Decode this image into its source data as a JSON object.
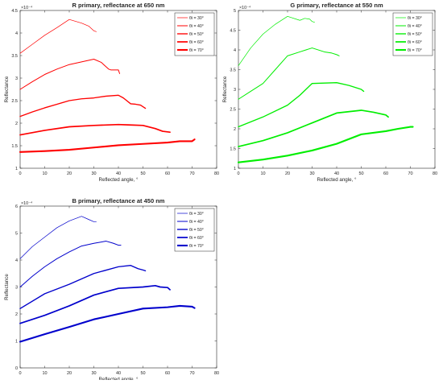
{
  "chart_data": [
    {
      "type": "line",
      "title": "R primary, reflectance at 650 nm",
      "xlabel": "Reflected angle, °",
      "ylabel": "Reflectance",
      "y_multiplier": "×10⁻⁴",
      "xlim": [
        0,
        80
      ],
      "ylim": [
        1.0,
        4.5
      ],
      "xticks": [
        0,
        10,
        20,
        30,
        40,
        50,
        60,
        70,
        80
      ],
      "yticks": [
        1,
        1.5,
        2,
        2.5,
        3,
        3.5,
        4,
        4.5
      ],
      "ytick_labels": [
        "1",
        "1.5",
        "2",
        "2.5",
        "3",
        "3.5",
        "4",
        "4.5"
      ],
      "grid": false,
      "legend_position": "top-right",
      "color": "#ff0000",
      "series": [
        {
          "name": "θi = 30°",
          "x": [
            0,
            5,
            10,
            15,
            20,
            25,
            28,
            30,
            31
          ],
          "y": [
            3.55,
            3.75,
            3.95,
            4.12,
            4.3,
            4.22,
            4.15,
            4.05,
            4.03
          ]
        },
        {
          "name": "θi = 40°",
          "x": [
            0,
            5,
            10,
            15,
            20,
            25,
            30,
            33,
            36,
            37,
            40,
            40.5
          ],
          "y": [
            2.75,
            2.92,
            3.08,
            3.2,
            3.3,
            3.36,
            3.42,
            3.35,
            3.2,
            3.18,
            3.18,
            3.1
          ]
        },
        {
          "name": "θi = 50°",
          "x": [
            0,
            5,
            10,
            15,
            20,
            25,
            30,
            35,
            40,
            42,
            45,
            47,
            49,
            51
          ],
          "y": [
            2.15,
            2.25,
            2.34,
            2.42,
            2.5,
            2.54,
            2.56,
            2.6,
            2.62,
            2.56,
            2.43,
            2.42,
            2.4,
            2.33
          ]
        },
        {
          "name": "θi = 60°",
          "x": [
            0,
            10,
            20,
            30,
            40,
            45,
            50,
            55,
            58,
            61
          ],
          "y": [
            1.74,
            1.84,
            1.92,
            1.95,
            1.97,
            1.96,
            1.95,
            1.88,
            1.82,
            1.8
          ]
        },
        {
          "name": "θi = 70°",
          "x": [
            0,
            10,
            20,
            30,
            40,
            50,
            60,
            65,
            70,
            71
          ],
          "y": [
            1.36,
            1.38,
            1.41,
            1.46,
            1.51,
            1.54,
            1.57,
            1.6,
            1.6,
            1.64
          ]
        }
      ]
    },
    {
      "type": "line",
      "title": "G primary, reflectance at 550 nm",
      "xlabel": "Reflected angle, °",
      "ylabel": "Reflectance",
      "y_multiplier": "×10⁻⁴",
      "xlim": [
        0,
        80
      ],
      "ylim": [
        1.0,
        5.0
      ],
      "xticks": [
        0,
        10,
        20,
        30,
        40,
        50,
        60,
        70,
        80
      ],
      "yticks": [
        1,
        1.5,
        2,
        2.5,
        3,
        3.5,
        4,
        4.5,
        5
      ],
      "ytick_labels": [
        "1",
        "1.5",
        "2",
        "2.5",
        "3",
        "3.5",
        "4",
        "4.5",
        "5"
      ],
      "grid": false,
      "legend_position": "top-right",
      "color": "#00ee00",
      "series": [
        {
          "name": "θi = 30°",
          "x": [
            0,
            5,
            10,
            15,
            20,
            25,
            27,
            29,
            30,
            31
          ],
          "y": [
            3.6,
            4.05,
            4.4,
            4.65,
            4.85,
            4.75,
            4.8,
            4.78,
            4.72,
            4.7
          ]
        },
        {
          "name": "θi = 40°",
          "x": [
            0,
            5,
            10,
            15,
            20,
            25,
            30,
            35,
            38,
            40,
            41
          ],
          "y": [
            2.75,
            2.95,
            3.15,
            3.5,
            3.85,
            3.95,
            4.05,
            3.95,
            3.92,
            3.88,
            3.85
          ]
        },
        {
          "name": "θi = 50°",
          "x": [
            0,
            10,
            20,
            25,
            30,
            35,
            40,
            45,
            50,
            51
          ],
          "y": [
            2.05,
            2.3,
            2.6,
            2.85,
            3.15,
            3.16,
            3.17,
            3.1,
            3.0,
            2.95
          ]
        },
        {
          "name": "θi = 60°",
          "x": [
            0,
            10,
            20,
            30,
            40,
            50,
            55,
            60,
            61
          ],
          "y": [
            1.55,
            1.7,
            1.9,
            2.15,
            2.4,
            2.47,
            2.42,
            2.35,
            2.3
          ]
        },
        {
          "name": "θi = 70°",
          "x": [
            0,
            10,
            20,
            30,
            40,
            50,
            60,
            65,
            70,
            71
          ],
          "y": [
            1.15,
            1.22,
            1.32,
            1.45,
            1.62,
            1.86,
            1.94,
            2.0,
            2.05,
            2.05
          ]
        }
      ]
    },
    {
      "type": "line",
      "title": "B primary, reflectance at 450 nm",
      "xlabel": "Reflected angle, °",
      "ylabel": "Reflectance",
      "y_multiplier": "×10⁻⁴",
      "xlim": [
        0,
        80
      ],
      "ylim": [
        0,
        6
      ],
      "xticks": [
        0,
        10,
        20,
        30,
        40,
        50,
        60,
        70,
        80
      ],
      "yticks": [
        0,
        1,
        2,
        3,
        4,
        5,
        6
      ],
      "ytick_labels": [
        "0",
        "1",
        "2",
        "3",
        "4",
        "5",
        "6"
      ],
      "grid": false,
      "legend_position": "top-right",
      "color": "#0000cc",
      "series": [
        {
          "name": "θi = 30°",
          "x": [
            0,
            5,
            10,
            15,
            20,
            25,
            28,
            30,
            31
          ],
          "y": [
            4.05,
            4.5,
            4.85,
            5.2,
            5.45,
            5.62,
            5.5,
            5.42,
            5.42
          ]
        },
        {
          "name": "θi = 40°",
          "x": [
            0,
            5,
            10,
            15,
            20,
            25,
            30,
            35,
            38,
            40,
            41
          ],
          "y": [
            3.0,
            3.4,
            3.75,
            4.05,
            4.3,
            4.52,
            4.62,
            4.7,
            4.62,
            4.55,
            4.55
          ]
        },
        {
          "name": "θi = 50°",
          "x": [
            0,
            10,
            20,
            30,
            40,
            45,
            48,
            50,
            51
          ],
          "y": [
            2.2,
            2.75,
            3.1,
            3.5,
            3.75,
            3.8,
            3.68,
            3.63,
            3.6
          ]
        },
        {
          "name": "θi = 60°",
          "x": [
            0,
            10,
            20,
            30,
            40,
            50,
            55,
            57,
            60,
            61
          ],
          "y": [
            1.65,
            1.95,
            2.3,
            2.7,
            2.95,
            3.0,
            3.05,
            3.0,
            2.98,
            2.9
          ]
        },
        {
          "name": "θi = 70°",
          "x": [
            0,
            10,
            20,
            30,
            40,
            50,
            60,
            65,
            70,
            71
          ],
          "y": [
            0.97,
            1.25,
            1.52,
            1.8,
            2.0,
            2.2,
            2.25,
            2.3,
            2.27,
            2.22
          ]
        }
      ]
    }
  ]
}
